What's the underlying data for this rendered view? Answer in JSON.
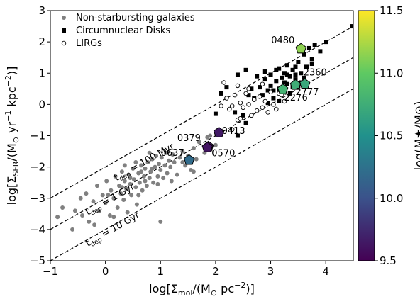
{
  "chart_data": {
    "type": "scatter",
    "xlabel": "log[Σ_mol/(M⊙ pc^−2)]",
    "ylabel": "log[Σ_SFR/(M⊙ yr^−1 kpc^−2)]",
    "xlim": [
      -1,
      4.5
    ],
    "ylim": [
      -5,
      3
    ],
    "x_ticks": [
      "−1",
      "0",
      "1",
      "2",
      "3",
      "4"
    ],
    "y_ticks": [
      "−5",
      "−4",
      "−3",
      "−2",
      "−1",
      "0",
      "1",
      "2",
      "3"
    ],
    "grid": false,
    "legend": {
      "placement": "top-left",
      "entries": [
        "Non-starbursting galaxies",
        "Circumnuclear Disks",
        "LIRGs"
      ]
    },
    "colorbar": {
      "label": "log(M★/M⊙)",
      "range": [
        9.5,
        11.5
      ],
      "ticks": [
        "9.5",
        "10.0",
        "10.5",
        "11.0",
        "11.5"
      ],
      "colormap": [
        "#440154",
        "#3b528b",
        "#21918c",
        "#5ec962",
        "#fde725"
      ]
    },
    "depletion_lines": [
      {
        "label": "t_dep = 100 Myr",
        "label_parts": [
          "t",
          "dep",
          " = 100 Myr"
        ],
        "offset": -2
      },
      {
        "label": "t_dep = 1 Gyr",
        "label_parts": [
          "t",
          "dep",
          " = 1 Gyr"
        ],
        "offset": -3
      },
      {
        "label": "t_dep = 10 Gyr",
        "label_parts": [
          "t",
          "dep",
          " = 10 Gyr"
        ],
        "offset": -4
      }
    ],
    "series": [
      {
        "name": "Non-starbursting galaxies",
        "marker": "circle",
        "color": "#808080",
        "points": [
          [
            -0.87,
            -3.6
          ],
          [
            -0.78,
            -3.3
          ],
          [
            -0.6,
            -4.0
          ],
          [
            -0.55,
            -3.4
          ],
          [
            -0.45,
            -3.0
          ],
          [
            -0.42,
            -3.55
          ],
          [
            -0.35,
            -2.85
          ],
          [
            -0.3,
            -3.75
          ],
          [
            -0.22,
            -3.1
          ],
          [
            -0.15,
            -2.6
          ],
          [
            -0.12,
            -3.4
          ],
          [
            -0.05,
            -2.9
          ],
          [
            0.0,
            -3.15
          ],
          [
            0.02,
            -2.45
          ],
          [
            0.08,
            -3.55
          ],
          [
            0.1,
            -2.75
          ],
          [
            0.15,
            -3.0
          ],
          [
            0.18,
            -2.3
          ],
          [
            0.22,
            -3.3
          ],
          [
            0.25,
            -2.6
          ],
          [
            0.28,
            -2.85
          ],
          [
            0.3,
            -2.15
          ],
          [
            0.33,
            -3.05
          ],
          [
            0.35,
            -2.45
          ],
          [
            0.38,
            -2.7
          ],
          [
            0.4,
            -3.45
          ],
          [
            0.42,
            -2.25
          ],
          [
            0.45,
            -2.55
          ],
          [
            0.47,
            -2.9
          ],
          [
            0.5,
            -2.05
          ],
          [
            0.52,
            -2.4
          ],
          [
            0.55,
            -2.65
          ],
          [
            0.57,
            -3.2
          ],
          [
            0.6,
            -2.2
          ],
          [
            0.62,
            -2.5
          ],
          [
            0.65,
            -1.95
          ],
          [
            0.67,
            -2.75
          ],
          [
            0.7,
            -2.3
          ],
          [
            0.72,
            -2.05
          ],
          [
            0.75,
            -2.6
          ],
          [
            0.77,
            -1.85
          ],
          [
            0.8,
            -2.35
          ],
          [
            0.82,
            -2.15
          ],
          [
            0.85,
            -1.75
          ],
          [
            0.87,
            -2.5
          ],
          [
            0.9,
            -2.0
          ],
          [
            0.92,
            -1.65
          ],
          [
            0.95,
            -2.3
          ],
          [
            0.97,
            -1.9
          ],
          [
            1.0,
            -2.1
          ],
          [
            1.02,
            -1.7
          ],
          [
            1.05,
            -2.35
          ],
          [
            1.08,
            -1.95
          ],
          [
            1.1,
            -1.55
          ],
          [
            1.12,
            -2.2
          ],
          [
            1.15,
            -1.8
          ],
          [
            1.18,
            -2.0
          ],
          [
            1.22,
            -1.6
          ],
          [
            1.25,
            -1.85
          ],
          [
            1.3,
            -2.25
          ],
          [
            1.35,
            -1.7
          ],
          [
            1.4,
            -1.5
          ],
          [
            1.45,
            -1.95
          ],
          [
            1.5,
            -1.65
          ],
          [
            1.55,
            -2.1
          ],
          [
            1.6,
            -1.4
          ],
          [
            1.65,
            -1.75
          ],
          [
            1.7,
            -1.2
          ],
          [
            1.8,
            -1.55
          ],
          [
            1.9,
            -1.0
          ],
          [
            2.0,
            -1.3
          ],
          [
            2.1,
            -0.85
          ],
          [
            0.3,
            -2.65
          ],
          [
            0.6,
            -2.9
          ],
          [
            0.85,
            -2.05
          ],
          [
            1.0,
            -3.75
          ],
          [
            -0.2,
            -3.85
          ],
          [
            0.15,
            -3.6
          ],
          [
            0.55,
            -1.85
          ],
          [
            0.8,
            -1.55
          ],
          [
            0.45,
            -2.35
          ],
          [
            0.72,
            -2.45
          ],
          [
            0.35,
            -1.95
          ],
          [
            0.95,
            -2.55
          ],
          [
            1.2,
            -2.45
          ],
          [
            1.6,
            -2.15
          ],
          [
            1.4,
            -1.85
          ],
          [
            1.85,
            -1.05
          ],
          [
            0.05,
            -2.9
          ],
          [
            0.65,
            -2.15
          ]
        ]
      },
      {
        "name": "Circumnuclear Disks",
        "marker": "square",
        "color": "#000000",
        "points": [
          [
            2.7,
            0.2
          ],
          [
            2.8,
            0.55
          ],
          [
            2.85,
            0.3
          ],
          [
            2.9,
            0.8
          ],
          [
            2.95,
            0.45
          ],
          [
            3.0,
            0.6
          ],
          [
            3.0,
            0.95
          ],
          [
            3.05,
            0.2
          ],
          [
            3.1,
            0.75
          ],
          [
            3.1,
            1.1
          ],
          [
            3.15,
            0.5
          ],
          [
            3.2,
            0.85
          ],
          [
            3.2,
            0.4
          ],
          [
            3.25,
            1.0
          ],
          [
            3.3,
            0.65
          ],
          [
            3.3,
            1.25
          ],
          [
            3.35,
            0.9
          ],
          [
            3.4,
            0.55
          ],
          [
            3.4,
            1.1
          ],
          [
            3.45,
            0.8
          ],
          [
            3.5,
            1.35
          ],
          [
            3.5,
            0.6
          ],
          [
            3.55,
            1.0
          ],
          [
            3.6,
            0.85
          ],
          [
            3.6,
            1.6
          ],
          [
            3.65,
            1.2
          ],
          [
            3.7,
            1.8
          ],
          [
            3.75,
            1.45
          ],
          [
            3.8,
            1.9
          ],
          [
            3.9,
            1.7
          ],
          [
            4.0,
            2.0
          ],
          [
            4.48,
            2.5
          ],
          [
            2.65,
            0.5
          ],
          [
            2.95,
            0.05
          ],
          [
            3.15,
            0.1
          ],
          [
            2.75,
            0.9
          ],
          [
            3.35,
            0.35
          ],
          [
            3.25,
            0.7
          ],
          [
            3.45,
            0.95
          ],
          [
            3.05,
            0.45
          ],
          [
            2.6,
            0.3
          ],
          [
            2.4,
            0.95
          ],
          [
            2.55,
            1.1
          ],
          [
            2.9,
            1.05
          ],
          [
            2.2,
            0.55
          ],
          [
            2.1,
            0.35
          ],
          [
            2.35,
            -0.25
          ],
          [
            2.5,
            -0.35
          ],
          [
            2.4,
            -1.0
          ],
          [
            2.55,
            -0.6
          ],
          [
            2.0,
            -0.3
          ],
          [
            3.15,
            1.15
          ],
          [
            3.3,
            0.95
          ],
          [
            3.45,
            1.2
          ],
          [
            3.55,
            0.7
          ],
          [
            3.75,
            1.3
          ]
        ]
      },
      {
        "name": "LIRGs",
        "marker": "open-circle",
        "color": "#000000",
        "points": [
          [
            2.2,
            0.2
          ],
          [
            2.25,
            -0.15
          ],
          [
            2.3,
            -0.05
          ],
          [
            2.35,
            0.3
          ],
          [
            2.4,
            -0.5
          ],
          [
            2.45,
            0.05
          ],
          [
            2.5,
            -0.1
          ],
          [
            2.55,
            0.35
          ],
          [
            2.6,
            0.0
          ],
          [
            2.65,
            -0.35
          ],
          [
            2.7,
            0.15
          ],
          [
            2.75,
            -0.2
          ],
          [
            2.8,
            0.25
          ],
          [
            2.85,
            -0.1
          ],
          [
            2.9,
            0.1
          ],
          [
            2.95,
            -0.25
          ],
          [
            3.05,
            0.0
          ],
          [
            3.1,
            -0.15
          ],
          [
            3.15,
            0.35
          ],
          [
            3.25,
            0.1
          ],
          [
            3.2,
            0.3
          ],
          [
            2.15,
            0.7
          ],
          [
            2.4,
            0.6
          ],
          [
            2.6,
            0.5
          ],
          [
            2.1,
            -0.05
          ],
          [
            2.3,
            -0.8
          ],
          [
            2.45,
            -0.45
          ],
          [
            2.85,
            0.65
          ],
          [
            3.0,
            0.4
          ]
        ]
      }
    ],
    "highlighted": [
      {
        "name": "0480",
        "x": 3.55,
        "y": 1.78,
        "logmass": 11.15
      },
      {
        "name": "2360",
        "x": 3.62,
        "y": 0.65,
        "logmass": 10.7
      },
      {
        "name": "2777",
        "x": 3.45,
        "y": 0.62,
        "logmass": 10.75
      },
      {
        "name": "2276",
        "x": 3.22,
        "y": 0.48,
        "logmass": 10.8
      },
      {
        "name": "0413",
        "x": 2.06,
        "y": -0.9,
        "logmass": 9.65
      },
      {
        "name": "0379",
        "x": 1.87,
        "y": -1.35,
        "logmass": 9.6
      },
      {
        "name": "0570",
        "x": 1.85,
        "y": -1.38,
        "logmass": 9.62
      },
      {
        "name": "0637",
        "x": 1.52,
        "y": -1.78,
        "logmass": 10.2
      }
    ]
  }
}
